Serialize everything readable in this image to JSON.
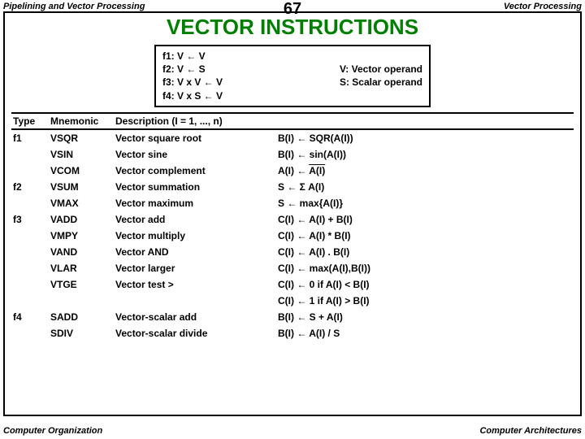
{
  "header": {
    "left": "Pipelining and Vector Processing",
    "page": "67",
    "right": "Vector Processing"
  },
  "title": "VECTOR  INSTRUCTIONS",
  "forms": {
    "f1": "f1:  V ← V",
    "f2": "f2:  V ← S",
    "f3": "f3:  V x V ← V",
    "f4": "f4:  V x S ← V",
    "legendV": "V: Vector operand",
    "legendS": "S: Scalar operand"
  },
  "table": {
    "headers": {
      "type": "Type",
      "mnem": "Mnemonic",
      "desc": "Description (I = 1, ..., n)"
    },
    "rows": [
      {
        "type": "f1",
        "mnem": "VSQR",
        "desc": "Vector square root",
        "op": "B(I) ←  SQR(A(I))"
      },
      {
        "type": "",
        "mnem": "VSIN",
        "desc": "Vector sine",
        "op": "B(I) ← sin(A(I))"
      },
      {
        "type": "",
        "mnem": "VCOM",
        "desc": "Vector complement",
        "op_pre": "A(I) ← ",
        "op_over": "A(I)"
      },
      {
        "type": "f2",
        "mnem": "VSUM",
        "desc": "Vector summation",
        "op": " S ← Σ A(I)"
      },
      {
        "type": "",
        "mnem": "VMAX",
        "desc": "Vector maximum",
        "op": " S ← max{A(I)}"
      },
      {
        "type": "f3",
        "mnem": "VADD",
        "desc": "Vector add",
        "op": "C(I) ← A(I) + B(I)"
      },
      {
        "type": "",
        "mnem": "VMPY",
        "desc": "Vector multiply",
        "op": "C(I) ← A(I) * B(I)"
      },
      {
        "type": "",
        "mnem": "VAND",
        "desc": "Vector AND",
        "op": "C(I) ← A(I) . B(I)"
      },
      {
        "type": "",
        "mnem": "VLAR",
        "desc": "Vector larger",
        "op": "C(I) ← max(A(I),B(I))"
      },
      {
        "type": "",
        "mnem": "VTGE",
        "desc": "Vector test >",
        "op": "C(I) ← 0 if A(I) < B(I)"
      },
      {
        "type": "",
        "mnem": "",
        "desc": "",
        "op": "C(I) ← 1 if A(I) > B(I)"
      },
      {
        "type": "f4",
        "mnem": "SADD",
        "desc": "Vector-scalar add",
        "op": "B(I) ← S + A(I)"
      },
      {
        "type": "",
        "mnem": " SDIV",
        "desc": "Vector-scalar divide",
        "op": "B(I) ← A(I) / S"
      }
    ]
  },
  "footer": {
    "left": "Computer Organization",
    "right": "Computer Architectures"
  }
}
